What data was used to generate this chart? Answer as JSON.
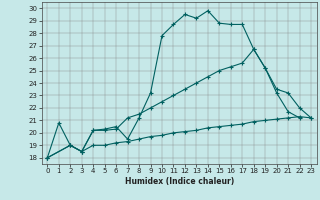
{
  "xlabel": "Humidex (Indice chaleur)",
  "bg_color": "#c6e8e8",
  "grid_color": "#999999",
  "line_color": "#006060",
  "xlim": [
    -0.5,
    23.5
  ],
  "ylim": [
    17.5,
    30.5
  ],
  "xticks": [
    0,
    1,
    2,
    3,
    4,
    5,
    6,
    7,
    8,
    9,
    10,
    11,
    12,
    13,
    14,
    15,
    16,
    17,
    18,
    19,
    20,
    21,
    22,
    23
  ],
  "yticks": [
    18,
    19,
    20,
    21,
    22,
    23,
    24,
    25,
    26,
    27,
    28,
    29,
    30
  ],
  "series": [
    {
      "x": [
        0,
        1,
        2,
        3,
        4,
        5,
        6,
        7,
        8,
        9,
        10,
        11,
        12,
        13,
        14,
        15,
        16,
        17,
        18,
        19,
        20,
        21,
        22
      ],
      "y": [
        18,
        20.8,
        19.0,
        18.5,
        20.2,
        20.3,
        20.5,
        19.5,
        21.2,
        23.2,
        27.8,
        28.7,
        29.5,
        29.2,
        29.8,
        28.8,
        28.7,
        28.7,
        26.7,
        25.2,
        23.2,
        21.7,
        21.2
      ]
    },
    {
      "x": [
        0,
        2,
        3,
        4,
        5,
        6,
        7,
        8,
        9,
        10,
        11,
        12,
        13,
        14,
        15,
        16,
        17,
        18,
        19,
        20,
        21,
        22,
        23
      ],
      "y": [
        18,
        19.0,
        18.5,
        20.2,
        20.2,
        20.3,
        21.2,
        21.5,
        22.0,
        22.5,
        23.0,
        23.5,
        24.0,
        24.5,
        25.0,
        25.3,
        25.6,
        26.7,
        25.2,
        23.5,
        23.2,
        22.0,
        21.2
      ]
    },
    {
      "x": [
        0,
        2,
        3,
        4,
        5,
        6,
        7,
        8,
        9,
        10,
        11,
        12,
        13,
        14,
        15,
        16,
        17,
        18,
        19,
        20,
        21,
        22,
        23
      ],
      "y": [
        18,
        19.0,
        18.5,
        19.0,
        19.0,
        19.2,
        19.3,
        19.5,
        19.7,
        19.8,
        20.0,
        20.1,
        20.2,
        20.4,
        20.5,
        20.6,
        20.7,
        20.9,
        21.0,
        21.1,
        21.2,
        21.3,
        21.2
      ]
    }
  ]
}
